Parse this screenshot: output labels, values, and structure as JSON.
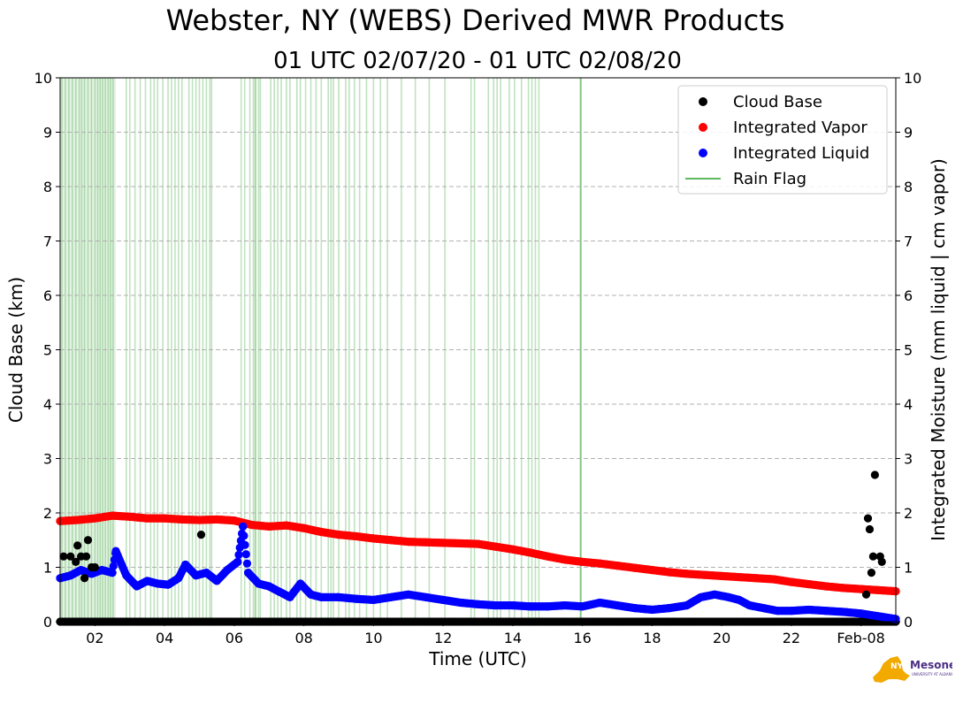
{
  "title": "Webster, NY (WEBS) Derived MWR Products",
  "subtitle": "01 UTC 02/07/20 - 01 UTC 02/08/20",
  "logo": {
    "text": "NYS Mesonet",
    "subtext": "UNIVERSITY AT ALBANY"
  },
  "colors": {
    "cloud_base": "#000000",
    "vapor": "#ff0000",
    "liquid": "#0000ff",
    "rain": "#2ca02c",
    "grid": "#b0b0b0"
  },
  "chart_data": {
    "type": "scatter",
    "title": "Webster, NY (WEBS) Derived MWR Products",
    "subtitle": "01 UTC 02/07/20 - 01 UTC 02/08/20",
    "xlabel": "Time (UTC)",
    "ylabel_left": "Cloud Base (km)",
    "ylabel_right": "Integrated Moisture (mm liquid | cm vapor)",
    "xlim": [
      1,
      25
    ],
    "ylim": [
      0,
      10
    ],
    "x_ticks": [
      2,
      4,
      6,
      8,
      10,
      12,
      14,
      16,
      18,
      20,
      22,
      24
    ],
    "x_tick_labels": [
      "02",
      "04",
      "06",
      "08",
      "10",
      "12",
      "14",
      "16",
      "18",
      "20",
      "22",
      "Feb-08"
    ],
    "y_ticks": [
      0,
      1,
      2,
      3,
      4,
      5,
      6,
      7,
      8,
      9,
      10
    ],
    "y_tick_labels": [
      "0",
      "1",
      "2",
      "3",
      "4",
      "5",
      "6",
      "7",
      "8",
      "9",
      "10"
    ],
    "grid": "horizontal dashed",
    "legend_position": "top-right",
    "legend": [
      {
        "label": "Cloud Base",
        "kind": "dot",
        "color": "#000000"
      },
      {
        "label": "Integrated Vapor",
        "kind": "dot",
        "color": "#ff0000"
      },
      {
        "label": "Integrated Liquid",
        "kind": "dot",
        "color": "#0000ff"
      },
      {
        "label": "Rain Flag",
        "kind": "line",
        "color": "#2ca02c"
      }
    ],
    "series": [
      {
        "name": "Integrated Vapor",
        "color": "#ff0000",
        "x": [
          1.0,
          1.5,
          2.0,
          2.5,
          3.0,
          3.5,
          4.0,
          4.5,
          5.0,
          5.5,
          6.0,
          6.5,
          7.0,
          7.5,
          8.0,
          8.5,
          9.0,
          9.5,
          10.0,
          10.5,
          11.0,
          11.5,
          12.0,
          12.5,
          13.0,
          13.5,
          14.0,
          14.5,
          15.0,
          15.5,
          16.0,
          16.5,
          17.0,
          17.5,
          18.0,
          18.5,
          19.0,
          19.5,
          20.0,
          20.5,
          21.0,
          21.5,
          22.0,
          22.5,
          23.0,
          23.5,
          24.0,
          24.5,
          25.0
        ],
        "y": [
          1.85,
          1.87,
          1.9,
          1.95,
          1.93,
          1.9,
          1.9,
          1.88,
          1.87,
          1.88,
          1.86,
          1.78,
          1.75,
          1.77,
          1.72,
          1.65,
          1.6,
          1.57,
          1.53,
          1.5,
          1.47,
          1.46,
          1.45,
          1.44,
          1.43,
          1.38,
          1.33,
          1.27,
          1.2,
          1.14,
          1.1,
          1.07,
          1.03,
          0.99,
          0.95,
          0.91,
          0.88,
          0.86,
          0.84,
          0.82,
          0.8,
          0.78,
          0.73,
          0.69,
          0.65,
          0.62,
          0.6,
          0.58,
          0.56
        ]
      },
      {
        "name": "Integrated Liquid",
        "color": "#0000ff",
        "x": [
          1.0,
          1.3,
          1.6,
          1.9,
          2.2,
          2.5,
          2.6,
          2.9,
          3.2,
          3.5,
          3.8,
          4.1,
          4.4,
          4.6,
          4.9,
          5.2,
          5.5,
          5.8,
          6.1,
          6.25,
          6.4,
          6.7,
          7.0,
          7.3,
          7.6,
          7.9,
          8.2,
          8.5,
          9.0,
          9.5,
          10.0,
          10.5,
          11.0,
          11.5,
          12.0,
          12.5,
          13.0,
          13.5,
          14.0,
          14.5,
          15.0,
          15.5,
          16.0,
          16.5,
          17.0,
          17.5,
          18.0,
          18.5,
          19.0,
          19.4,
          19.8,
          20.2,
          20.5,
          20.8,
          21.2,
          21.6,
          22.0,
          22.5,
          23.0,
          23.5,
          24.0,
          24.5,
          25.0
        ],
        "y": [
          0.8,
          0.85,
          0.95,
          0.88,
          0.95,
          0.9,
          1.3,
          0.85,
          0.65,
          0.75,
          0.7,
          0.68,
          0.8,
          1.05,
          0.85,
          0.9,
          0.75,
          0.95,
          1.1,
          1.75,
          0.9,
          0.7,
          0.65,
          0.55,
          0.45,
          0.7,
          0.5,
          0.45,
          0.45,
          0.42,
          0.4,
          0.45,
          0.5,
          0.45,
          0.4,
          0.35,
          0.32,
          0.3,
          0.3,
          0.28,
          0.28,
          0.3,
          0.28,
          0.35,
          0.3,
          0.25,
          0.22,
          0.25,
          0.3,
          0.45,
          0.5,
          0.45,
          0.4,
          0.3,
          0.25,
          0.2,
          0.2,
          0.22,
          0.2,
          0.18,
          0.15,
          0.1,
          0.05
        ]
      },
      {
        "name": "Cloud Base",
        "color": "#000000",
        "x": [
          1.1,
          1.3,
          1.45,
          1.5,
          1.6,
          1.7,
          1.75,
          1.8,
          1.9,
          2.0,
          5.05,
          24.15,
          24.2,
          24.25,
          24.3,
          24.35,
          24.4,
          24.55,
          24.6
        ],
        "y": [
          1.2,
          1.2,
          1.1,
          1.4,
          1.2,
          0.8,
          1.2,
          1.5,
          1.0,
          1.0,
          1.6,
          0.5,
          1.9,
          1.7,
          0.9,
          1.2,
          2.7,
          1.2,
          1.1
        ]
      }
    ],
    "cloud_base_clear_value": 0,
    "rain_flag_dense_range": [
      1,
      2.6
    ],
    "rain_flag_times": [
      1.05,
      1.15,
      1.25,
      1.35,
      1.45,
      1.55,
      1.62,
      1.7,
      1.8,
      1.9,
      2.0,
      2.08,
      2.15,
      2.22,
      2.3,
      2.38,
      2.45,
      2.52,
      2.9,
      3.0,
      3.15,
      3.3,
      3.45,
      3.6,
      3.7,
      3.8,
      3.95,
      4.1,
      4.2,
      4.3,
      4.4,
      4.5,
      4.7,
      4.8,
      4.9,
      5.0,
      5.1,
      5.2,
      5.3,
      5.35,
      6.2,
      6.3,
      6.45,
      6.55,
      6.6,
      6.62,
      6.7,
      6.75,
      7.05,
      7.15,
      7.25,
      7.35,
      7.5,
      7.6,
      7.8,
      7.9,
      8.05,
      8.2,
      8.35,
      8.5,
      8.7,
      8.78,
      8.85,
      9.0,
      9.2,
      9.3,
      9.45,
      9.6,
      9.8,
      10.0,
      10.2,
      10.4,
      10.8,
      11.2,
      11.6,
      12.05,
      12.8,
      12.9,
      13.3,
      13.45,
      13.55,
      13.65,
      13.9,
      14.05,
      14.25,
      14.45,
      14.55,
      14.65,
      14.75,
      15.95
    ]
  }
}
